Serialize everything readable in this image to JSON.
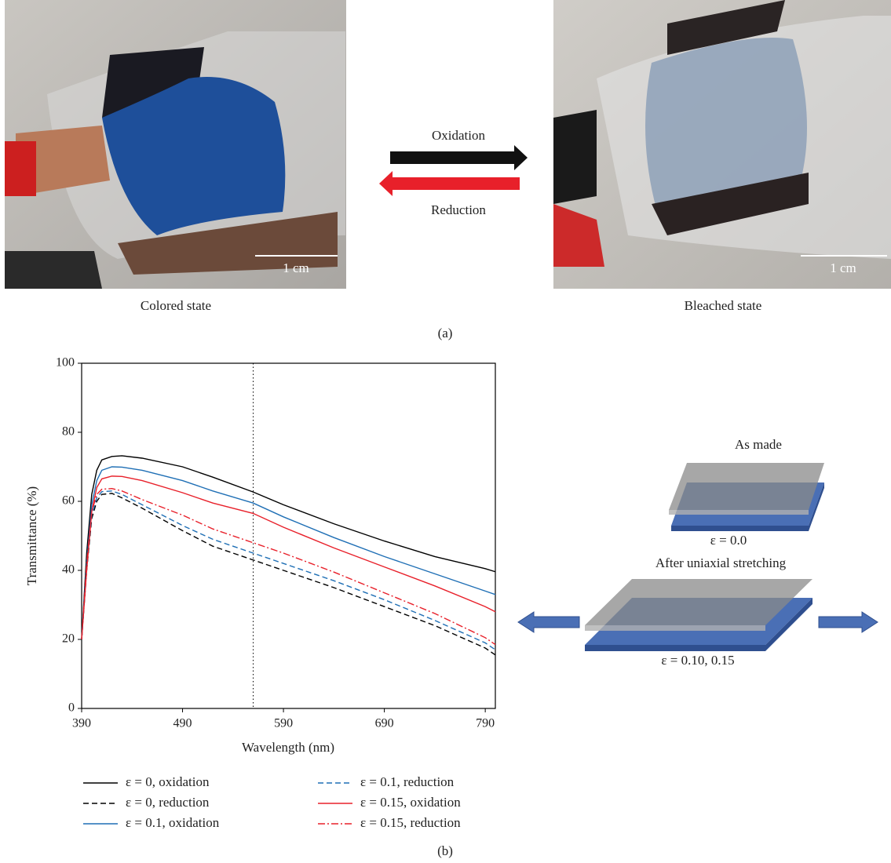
{
  "panel_a": {
    "left_caption": "Colored state",
    "right_caption": "Bleached state",
    "scale_left": "1 cm",
    "scale_right": "1 cm",
    "arrow_top": "Oxidation",
    "arrow_bottom": "Reduction",
    "label": "(a)"
  },
  "panel_b": {
    "label": "(b)"
  },
  "diagram": {
    "top_title": "As made",
    "top_strain": "ε = 0.0",
    "bottom_title": "After uniaxial stretching",
    "bottom_strain": "ε = 0.10, 0.15"
  },
  "chart_data": {
    "type": "line",
    "xlabel": "Wavelength (nm)",
    "ylabel": "Transmittance (%)",
    "x": [
      390,
      395,
      400,
      405,
      410,
      420,
      430,
      450,
      490,
      520,
      560,
      590,
      640,
      690,
      740,
      790,
      800
    ],
    "xlim": [
      390,
      800
    ],
    "ylim": [
      0,
      100
    ],
    "xticks": [
      390,
      490,
      590,
      690,
      790
    ],
    "yticks": [
      0,
      20,
      40,
      60,
      80,
      100
    ],
    "vline": 560,
    "series": [
      {
        "name": "ε = 0, oxidation",
        "color": "#000000",
        "dash": "solid",
        "values": [
          20,
          45,
          62,
          69,
          72,
          73,
          73.2,
          72.5,
          70,
          67,
          62.7,
          59,
          53.5,
          48.5,
          44,
          40.5,
          39.6
        ]
      },
      {
        "name": "ε = 0, reduction",
        "color": "#000000",
        "dash": "dashed",
        "values": [
          20,
          40,
          55,
          60,
          62,
          62.3,
          61,
          58,
          51.5,
          47,
          43,
          40,
          35,
          29.5,
          24,
          17.5,
          15.5
        ]
      },
      {
        "name": "ε = 0.1, oxidation",
        "color": "#1f6fb5",
        "dash": "solid",
        "values": [
          20,
          42,
          59,
          66,
          69,
          70,
          69.9,
          69,
          66,
          63,
          59.5,
          55.5,
          49.5,
          44,
          39,
          34,
          33
        ]
      },
      {
        "name": "ε = 0.1, reduction",
        "color": "#1f6fb5",
        "dash": "dashed",
        "values": [
          20,
          41,
          56,
          61,
          62.8,
          63,
          62,
          59,
          53,
          49,
          45,
          42,
          37,
          31.5,
          25.5,
          19,
          17
        ]
      },
      {
        "name": "ε = 0.15, oxidation",
        "color": "#e8202a",
        "dash": "solid",
        "values": [
          20,
          40,
          57,
          64,
          66.5,
          67.3,
          67.2,
          66,
          62.5,
          59.5,
          56.5,
          52.5,
          46.5,
          41,
          35.5,
          29.5,
          28
        ]
      },
      {
        "name": "ε = 0.15, reduction",
        "color": "#e8202a",
        "dash": "dashdot",
        "values": [
          20,
          42,
          57,
          62,
          63.5,
          63.7,
          63,
          60.5,
          56,
          52,
          48,
          45,
          39.5,
          33.5,
          27.5,
          20.5,
          18.5
        ]
      }
    ]
  }
}
